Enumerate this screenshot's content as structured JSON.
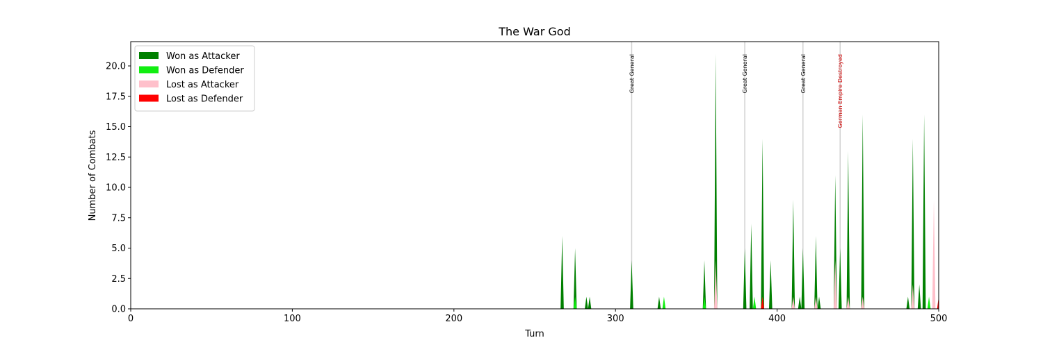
{
  "chart_data": {
    "type": "area",
    "title": "The War God",
    "xlabel": "Turn",
    "ylabel": "Number of Combats",
    "x": [
      0,
      266,
      267,
      268,
      274,
      275,
      276,
      281,
      282,
      283,
      284,
      285,
      309,
      310,
      311,
      326,
      327,
      328,
      329,
      330,
      331,
      354,
      355,
      356,
      361,
      362,
      363,
      379,
      380,
      381,
      383,
      384,
      385,
      386,
      387,
      390,
      391,
      392,
      395,
      396,
      397,
      409,
      410,
      411,
      413,
      414,
      415,
      416,
      417,
      423,
      424,
      425,
      426,
      427,
      435,
      436,
      437,
      438,
      439,
      440,
      443,
      444,
      445,
      452,
      453,
      454,
      480,
      481,
      482,
      483,
      484,
      485,
      487,
      488,
      489,
      490,
      491,
      492,
      493,
      494,
      495,
      496,
      497,
      498,
      499,
      500
    ],
    "series": [
      {
        "name": "Won as Attacker",
        "color": "#008000",
        "values": [
          0,
          0,
          6,
          0,
          0,
          5,
          0,
          0,
          1,
          0,
          1,
          0,
          0,
          4,
          0,
          0,
          1,
          0,
          0,
          0,
          0,
          0,
          4,
          0,
          0,
          21,
          0,
          0,
          5,
          0,
          0,
          7,
          0,
          0,
          0,
          0,
          14,
          0,
          0,
          4,
          0,
          0,
          9,
          0,
          0,
          1,
          0,
          5,
          0,
          0,
          6,
          0,
          1,
          0,
          0,
          11,
          0,
          0,
          5,
          0,
          0,
          13,
          0,
          0,
          16,
          0,
          0,
          1,
          0,
          0,
          14,
          0,
          0,
          2,
          0,
          0,
          16,
          0,
          0,
          0,
          0,
          0,
          0,
          0,
          0,
          0
        ]
      },
      {
        "name": "Won as Defender",
        "color": "#11ee11",
        "values": [
          0,
          0,
          0,
          0,
          0,
          1,
          0,
          0,
          0,
          0,
          0,
          0,
          0,
          0,
          0,
          0,
          0,
          0,
          0,
          1,
          0,
          0,
          1,
          0,
          0,
          0,
          0,
          0,
          0,
          0,
          0,
          0,
          0,
          1,
          0,
          0,
          1,
          0,
          0,
          0,
          0,
          0,
          0,
          0,
          0,
          0,
          0,
          0,
          0,
          0,
          0,
          0,
          0,
          0,
          0,
          0,
          0,
          0,
          0,
          0,
          0,
          0,
          0,
          0,
          0,
          0,
          0,
          0,
          0,
          0,
          0,
          0,
          0,
          0,
          0,
          0,
          0,
          0,
          0,
          1,
          0,
          0,
          0,
          0,
          0,
          0
        ]
      },
      {
        "name": "Lost as Attacker",
        "color": "#ffc0cb",
        "values": [
          0,
          0,
          0,
          0,
          0,
          0,
          0,
          0,
          0,
          0,
          0,
          0,
          0,
          0,
          0,
          0,
          0,
          0,
          0,
          0,
          0,
          0,
          0,
          0,
          0,
          4,
          0,
          0,
          0,
          0,
          0,
          0,
          0,
          0,
          0,
          0,
          0,
          0,
          0,
          0,
          0,
          0,
          1,
          0,
          0,
          0,
          0,
          0,
          0,
          0,
          1,
          0,
          0,
          0,
          0,
          4,
          0,
          0,
          0,
          0,
          0,
          1,
          0,
          0,
          1,
          0,
          0,
          0,
          0,
          0,
          2,
          0,
          0,
          0,
          0,
          0,
          0,
          0,
          0,
          0,
          0,
          0,
          9,
          0,
          0,
          0
        ]
      },
      {
        "name": "Lost as Defender",
        "color": "#ff0000",
        "values": [
          0,
          0,
          0,
          0,
          0,
          0,
          0,
          0,
          0,
          0,
          0,
          0,
          0,
          0,
          0,
          0,
          0,
          0,
          0,
          0,
          0,
          0,
          0,
          0,
          0,
          0,
          0,
          0,
          0,
          0,
          0,
          0,
          0,
          0,
          0,
          0,
          1,
          0,
          0,
          0,
          0,
          0,
          0,
          0,
          0,
          0,
          0,
          0,
          0,
          0,
          0,
          0,
          0,
          0,
          0,
          0,
          0,
          0,
          0,
          0,
          0,
          0,
          0,
          0,
          0,
          0,
          0,
          0,
          0,
          0,
          0,
          0,
          0,
          0,
          0,
          0,
          0,
          0,
          0,
          0,
          0,
          0,
          0,
          0,
          0,
          1
        ]
      }
    ],
    "annotations": [
      {
        "x": 310,
        "text": "Great General",
        "color": "#000000"
      },
      {
        "x": 380,
        "text": "Great General",
        "color": "#000000"
      },
      {
        "x": 416,
        "text": "Great General",
        "color": "#000000"
      },
      {
        "x": 439,
        "text": "German Empire Destroyed",
        "color": "#cc0000"
      }
    ],
    "xlim": [
      0,
      500
    ],
    "xticks": [
      0,
      100,
      200,
      300,
      400,
      500
    ],
    "ylim": [
      0,
      22
    ],
    "yticks": [
      {
        "value": 0,
        "label": "0.0"
      },
      {
        "value": 2.5,
        "label": "2.5"
      },
      {
        "value": 5,
        "label": "5.0"
      },
      {
        "value": 7.5,
        "label": "7.5"
      },
      {
        "value": 10,
        "label": "10.0"
      },
      {
        "value": 12.5,
        "label": "12.5"
      },
      {
        "value": 15,
        "label": "15.0"
      },
      {
        "value": 17.5,
        "label": "17.5"
      },
      {
        "value": 20,
        "label": "20.0"
      }
    ],
    "legend": "upper left"
  }
}
